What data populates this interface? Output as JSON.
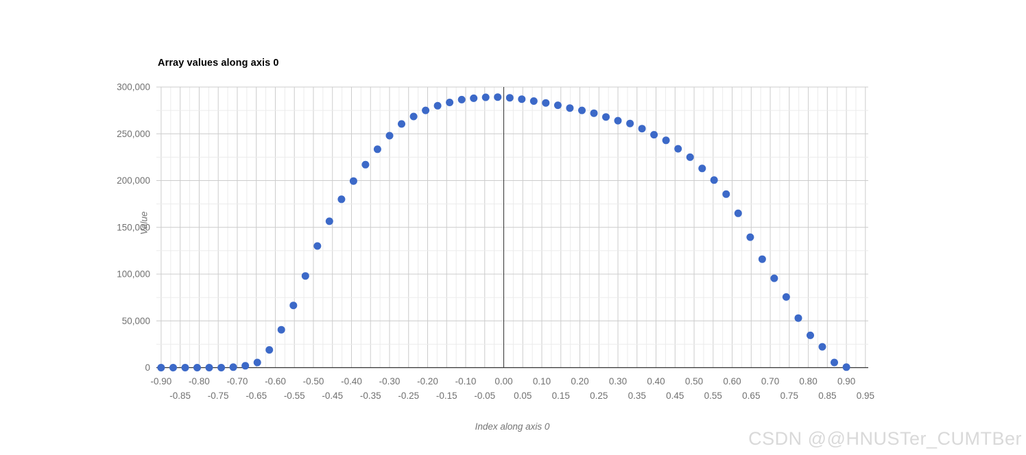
{
  "watermark": "CSDN @@HNUSTer_CUMTBer",
  "colors": {
    "background": "#ffffff",
    "point": "#3c69c8",
    "grid_major": "#cccccc",
    "grid_minor": "#ebebeb",
    "axis_line": "#333333",
    "tick_text": "#717171",
    "title_text": "#000000",
    "axis_title_text": "#757575",
    "watermark_text": "#d9d9d9"
  },
  "chart_data": {
    "type": "scatter",
    "title": "Array values along axis 0",
    "xlabel": "Index along axis 0",
    "ylabel": "Value",
    "legend": "none",
    "grid": true,
    "xlim": [
      -0.9125,
      0.9575
    ],
    "ylim": [
      0,
      300000
    ],
    "x_minor_grid_step": 0.025,
    "x_major_grid_step": 0.05,
    "y_minor_grid_step": 25000,
    "y_major_grid_step": 50000,
    "y_tick_labels": [
      "0",
      "50,000",
      "100,000",
      "150,000",
      "200,000",
      "250,000",
      "300,000"
    ],
    "x_tick_labels_row1": [
      "-0.90",
      "-0.80",
      "-0.70",
      "-0.60",
      "-0.50",
      "-0.40",
      "-0.30",
      "-0.20",
      "-0.10",
      "0.00",
      "0.10",
      "0.20",
      "0.30",
      "0.40",
      "0.50",
      "0.60",
      "0.70",
      "0.80",
      "0.90"
    ],
    "x_tick_labels_row2": [
      "-0.85",
      "-0.75",
      "-0.65",
      "-0.55",
      "-0.45",
      "-0.35",
      "-0.25",
      "-0.15",
      "-0.05",
      "0.05",
      "0.15",
      "0.25",
      "0.35",
      "0.45",
      "0.55",
      "0.65",
      "0.75",
      "0.85",
      "0.95"
    ],
    "point_color": "#3c69c8",
    "point_radius": 5.5,
    "x": [
      -0.9,
      -0.8684,
      -0.8368,
      -0.8053,
      -0.7737,
      -0.7421,
      -0.7105,
      -0.6789,
      -0.6474,
      -0.6158,
      -0.5842,
      -0.5526,
      -0.5211,
      -0.4895,
      -0.4579,
      -0.4263,
      -0.3947,
      -0.3632,
      -0.3316,
      -0.3,
      -0.2684,
      -0.2368,
      -0.2053,
      -0.1737,
      -0.1421,
      -0.1105,
      -0.0789,
      -0.0474,
      -0.0158,
      0.0158,
      0.0474,
      0.0789,
      0.1105,
      0.1421,
      0.1737,
      0.2053,
      0.2368,
      0.2684,
      0.3,
      0.3316,
      0.3632,
      0.3947,
      0.4263,
      0.4579,
      0.4895,
      0.5211,
      0.5526,
      0.5842,
      0.6158,
      0.6474,
      0.6789,
      0.7105,
      0.7421,
      0.7737,
      0.8053,
      0.8368,
      0.8684,
      0.9
    ],
    "y": [
      0,
      0,
      0,
      0,
      0,
      0,
      500,
      2000,
      5500,
      19000,
      40500,
      66500,
      98000,
      130000,
      156500,
      180000,
      199500,
      217000,
      233500,
      248000,
      260500,
      268500,
      275000,
      280000,
      283500,
      286500,
      288000,
      289000,
      289200,
      288500,
      287000,
      285000,
      283000,
      280500,
      277500,
      275000,
      272000,
      268000,
      264000,
      261000,
      255500,
      249000,
      243000,
      234000,
      225000,
      213000,
      200500,
      185500,
      165000,
      139500,
      116000,
      95500,
      75500,
      53000,
      34500,
      22300,
      5500,
      500
    ]
  }
}
